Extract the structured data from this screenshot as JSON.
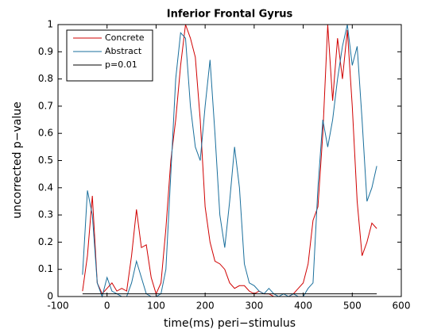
{
  "chart_data": {
    "type": "line",
    "title": "Inferior Frontal Gyrus",
    "x_label": "time(ms) peri−stimulus",
    "y_label": "uncorrected p−value",
    "x": [
      -50,
      -40,
      -30,
      -20,
      -10,
      0,
      10,
      20,
      30,
      40,
      50,
      60,
      70,
      80,
      90,
      100,
      110,
      120,
      130,
      140,
      150,
      160,
      170,
      180,
      190,
      200,
      210,
      220,
      230,
      240,
      250,
      260,
      270,
      280,
      290,
      300,
      310,
      320,
      330,
      340,
      350,
      360,
      370,
      380,
      390,
      400,
      410,
      420,
      430,
      440,
      450,
      460,
      470,
      480,
      490,
      500,
      510,
      520,
      530,
      540,
      550
    ],
    "series": [
      {
        "name": "Concrete",
        "color": "#d00000",
        "values": [
          0.02,
          0.15,
          0.37,
          0.05,
          0.01,
          0.03,
          0.05,
          0.02,
          0.03,
          0.02,
          0.15,
          0.32,
          0.18,
          0.19,
          0.07,
          0.01,
          0.05,
          0.25,
          0.5,
          0.65,
          0.85,
          1.0,
          0.95,
          0.88,
          0.65,
          0.33,
          0.2,
          0.13,
          0.12,
          0.1,
          0.05,
          0.03,
          0.04,
          0.04,
          0.02,
          0.01,
          0.02,
          0.01,
          0.01,
          0,
          0,
          0,
          0,
          0.01,
          0.03,
          0.05,
          0.12,
          0.28,
          0.33,
          0.6,
          1.0,
          0.72,
          0.95,
          0.8,
          0.98,
          0.7,
          0.35,
          0.15,
          0.2,
          0.27,
          0.25
        ]
      },
      {
        "name": "Abstract",
        "color": "#1a6f9c",
        "values": [
          0.08,
          0.39,
          0.3,
          0.05,
          0,
          0.07,
          0.02,
          0.01,
          0,
          0,
          0.05,
          0.13,
          0.07,
          0.01,
          0,
          0,
          0.01,
          0.1,
          0.45,
          0.8,
          0.97,
          0.95,
          0.7,
          0.55,
          0.5,
          0.7,
          0.87,
          0.6,
          0.3,
          0.18,
          0.35,
          0.55,
          0.4,
          0.12,
          0.05,
          0.04,
          0.02,
          0.01,
          0.03,
          0.01,
          0,
          0.01,
          0,
          0.01,
          0,
          0,
          0.03,
          0.05,
          0.4,
          0.65,
          0.55,
          0.65,
          0.8,
          0.92,
          1.0,
          0.85,
          0.92,
          0.65,
          0.35,
          0.4,
          0.48
        ]
      },
      {
        "name": "p=0.01",
        "color": "#000000",
        "x": [
          -50,
          550
        ],
        "values": [
          0.01,
          0.01
        ]
      }
    ],
    "xlim": [
      -100,
      600
    ],
    "xticks": [
      -100,
      0,
      100,
      200,
      300,
      400,
      500,
      600
    ],
    "ylim": [
      0,
      1
    ],
    "yticks": [
      0,
      0.1,
      0.2,
      0.3,
      0.4,
      0.5,
      0.6,
      0.7,
      0.8,
      0.9,
      1
    ],
    "legend": "upper left"
  }
}
